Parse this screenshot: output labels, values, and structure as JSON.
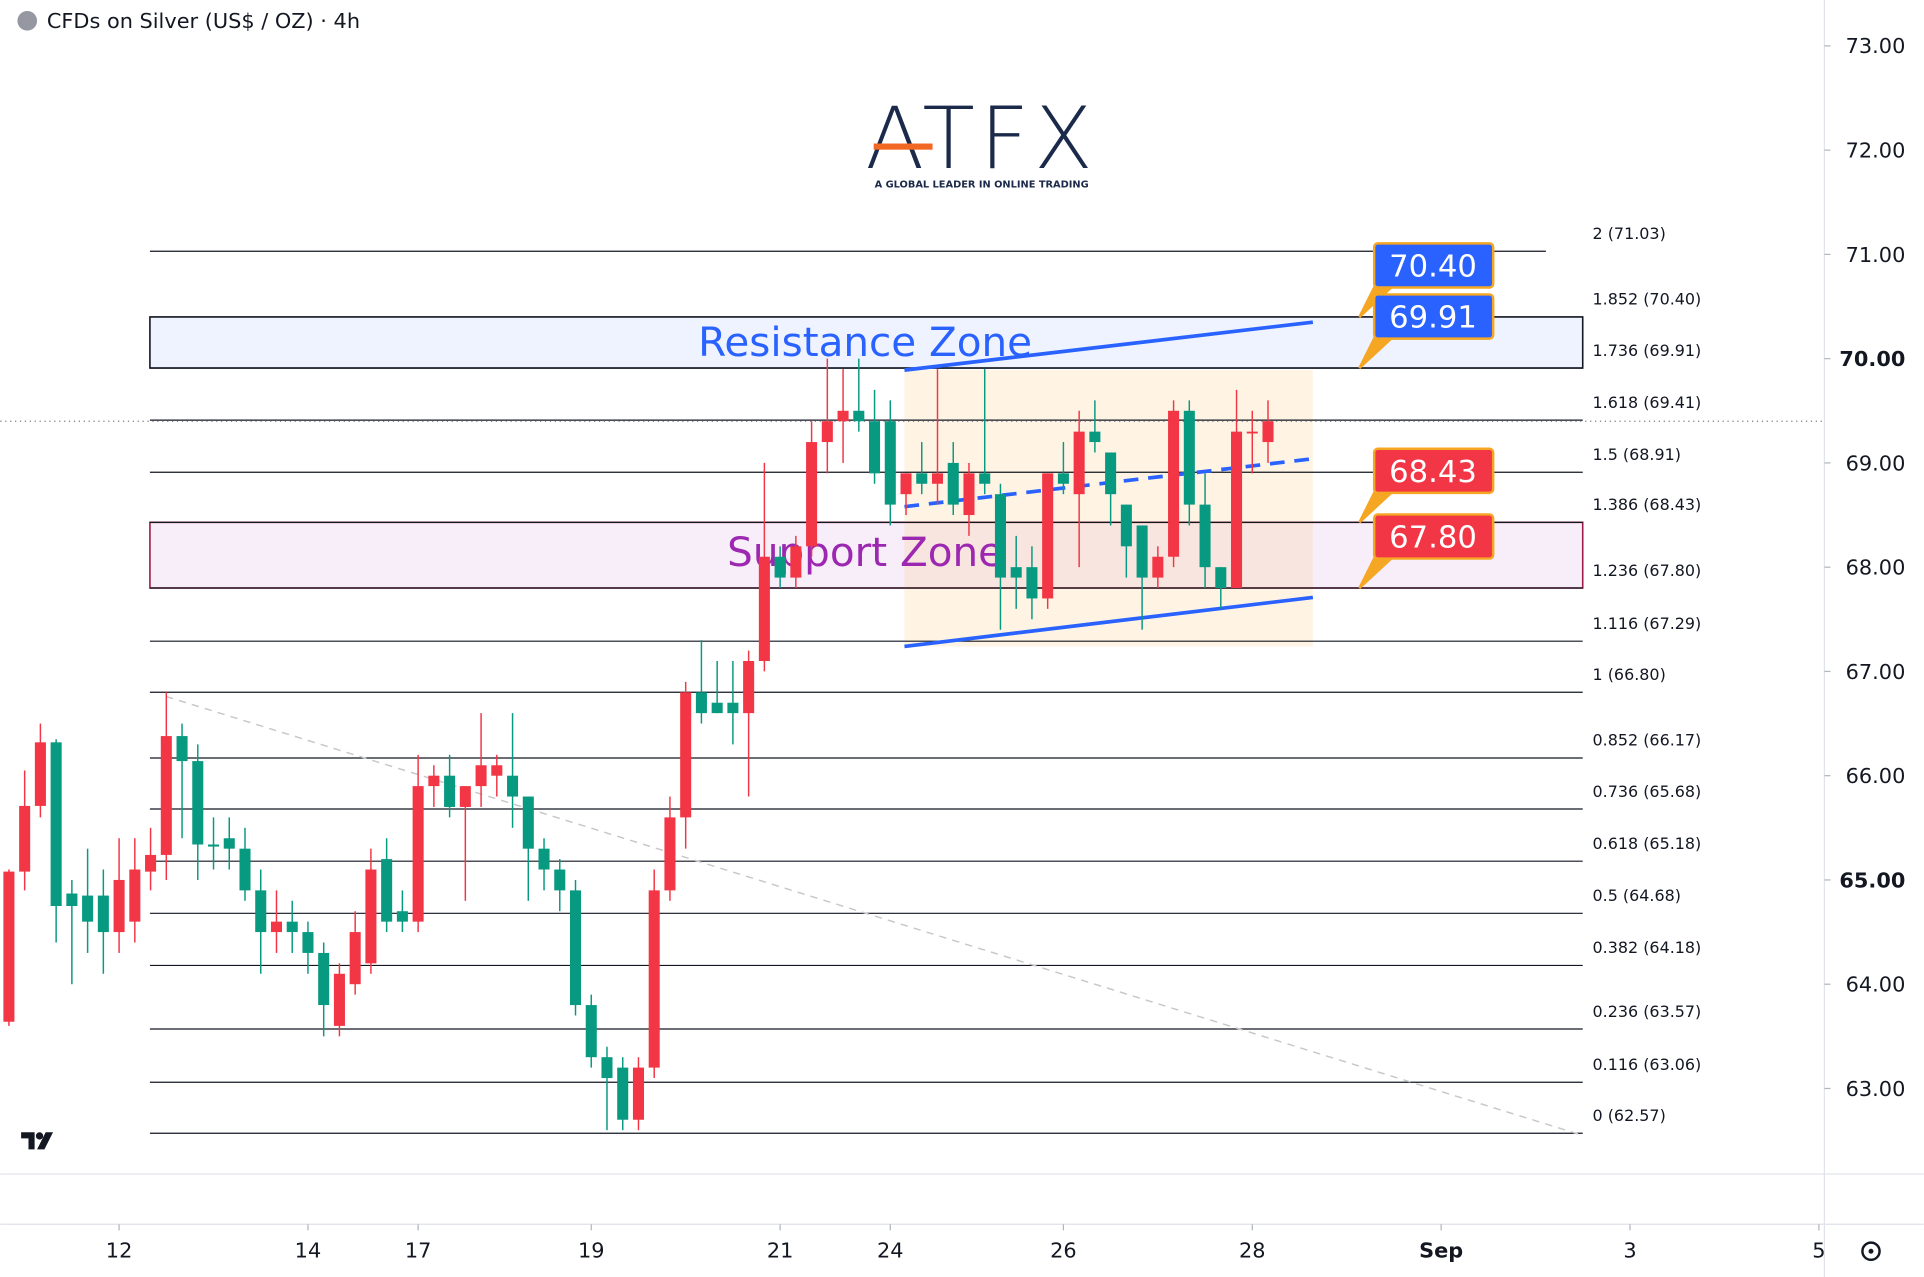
{
  "chart_data": {
    "type": "candlestick",
    "title": "CFDs on Silver (US$ / OZ) · 4h",
    "logo": {
      "name": "ATFX",
      "tagline": "A GLOBAL LEADER IN ONLINE TRADING"
    },
    "up_color": "#f23645",
    "down_color": "#089981",
    "x": [
      0,
      1,
      2,
      3,
      4,
      5,
      6,
      7,
      8,
      9,
      10,
      11,
      12,
      13,
      14,
      15,
      16,
      17,
      18,
      19,
      20,
      21,
      22,
      23,
      24,
      25,
      26,
      27,
      28,
      29,
      30,
      31,
      32,
      33,
      34,
      35,
      36,
      37,
      38,
      39,
      40,
      41,
      42,
      43,
      44,
      45,
      46,
      47,
      48,
      49,
      50,
      51,
      52,
      53,
      54,
      55,
      56,
      57,
      58,
      59,
      60,
      61,
      62,
      63,
      64,
      65,
      66,
      67,
      68,
      69,
      70,
      71,
      72,
      73,
      74,
      75,
      76,
      77,
      78,
      79,
      80
    ],
    "open": [
      63.64,
      65.08,
      65.71,
      66.32,
      64.87,
      64.85,
      64.85,
      64.5,
      64.6,
      65.08,
      65.24,
      66.38,
      66.14,
      65.34,
      65.4,
      65.3,
      64.9,
      64.5,
      64.6,
      64.5,
      64.3,
      63.6,
      64.0,
      64.2,
      65.2,
      64.7,
      64.6,
      65.9,
      66.0,
      65.7,
      65.9,
      66.0,
      66.0,
      65.8,
      65.3,
      65.1,
      64.9,
      63.8,
      63.3,
      63.2,
      62.7,
      63.2,
      64.9,
      65.6,
      66.8,
      66.7,
      66.7,
      66.6,
      67.1,
      68.1,
      67.9,
      68.2,
      69.2,
      69.4,
      69.5,
      69.4,
      69.4,
      68.7,
      68.9,
      68.8,
      69.0,
      68.5,
      68.9,
      68.7,
      68.0,
      68.0,
      67.7,
      68.9,
      68.7,
      69.3,
      69.1,
      68.6,
      68.4,
      67.9,
      68.1,
      69.5,
      68.6,
      68.0,
      67.8,
      69.3,
      69.2
    ],
    "high": [
      65.1,
      66.05,
      66.5,
      66.35,
      65.0,
      65.3,
      65.1,
      65.4,
      65.4,
      65.5,
      66.8,
      66.5,
      66.3,
      65.6,
      65.6,
      65.5,
      65.1,
      64.9,
      64.8,
      64.6,
      64.4,
      64.2,
      64.7,
      65.3,
      65.4,
      64.9,
      66.2,
      66.1,
      66.2,
      65.9,
      66.6,
      66.2,
      66.6,
      65.8,
      65.4,
      65.2,
      65.0,
      63.9,
      63.4,
      63.3,
      63.3,
      65.1,
      65.8,
      66.9,
      67.3,
      67.1,
      67.1,
      67.2,
      69.0,
      68.2,
      68.3,
      69.4,
      70.0,
      69.9,
      70.0,
      69.7,
      69.6,
      68.9,
      69.2,
      69.9,
      69.2,
      69.0,
      69.9,
      68.8,
      68.3,
      68.2,
      68.9,
      69.2,
      69.5,
      69.6,
      69.1,
      68.6,
      68.4,
      68.2,
      69.6,
      69.6,
      68.9,
      68.0,
      69.7,
      69.5,
      69.6
    ],
    "low": [
      63.6,
      64.9,
      65.6,
      64.4,
      64.0,
      64.3,
      64.1,
      64.3,
      64.4,
      64.9,
      65.0,
      65.4,
      65.0,
      65.1,
      65.1,
      64.8,
      64.1,
      64.3,
      64.3,
      64.1,
      63.5,
      63.5,
      63.9,
      64.1,
      64.5,
      64.5,
      64.5,
      65.7,
      65.6,
      64.8,
      65.7,
      65.8,
      65.5,
      64.8,
      64.9,
      64.7,
      63.7,
      63.2,
      62.6,
      62.6,
      62.6,
      63.1,
      64.8,
      65.3,
      66.5,
      66.6,
      66.3,
      65.8,
      67.0,
      67.8,
      67.8,
      68.1,
      68.9,
      69.0,
      69.3,
      68.8,
      68.4,
      68.5,
      68.7,
      68.6,
      68.5,
      68.3,
      68.7,
      67.4,
      67.6,
      67.5,
      67.6,
      68.7,
      68.0,
      69.1,
      68.4,
      67.9,
      67.4,
      67.8,
      68.0,
      68.4,
      67.8,
      67.6,
      67.8,
      68.9,
      69.0
    ],
    "close": [
      65.08,
      65.71,
      66.32,
      64.75,
      64.75,
      64.6,
      64.5,
      65.0,
      65.1,
      65.24,
      66.38,
      66.14,
      65.34,
      65.32,
      65.3,
      64.9,
      64.5,
      64.6,
      64.5,
      64.3,
      63.8,
      64.1,
      64.5,
      65.1,
      64.6,
      64.6,
      65.9,
      66.0,
      65.7,
      65.9,
      66.1,
      66.1,
      65.8,
      65.3,
      65.1,
      64.9,
      63.8,
      63.3,
      63.1,
      62.7,
      63.2,
      64.9,
      65.6,
      66.8,
      66.6,
      66.6,
      66.6,
      67.1,
      68.1,
      67.9,
      68.2,
      69.2,
      69.4,
      69.5,
      69.4,
      68.9,
      68.6,
      68.9,
      68.8,
      68.9,
      68.6,
      68.9,
      68.8,
      67.9,
      67.9,
      67.7,
      68.9,
      68.8,
      69.3,
      69.2,
      68.7,
      68.2,
      67.9,
      68.1,
      69.5,
      68.6,
      68.0,
      67.8,
      69.3,
      69.3,
      69.4
    ],
    "xlim": [
      -0.55,
      115.35
    ],
    "xticks": [
      {
        "value": 7,
        "label": "12"
      },
      {
        "value": 19,
        "label": "14"
      },
      {
        "value": 26,
        "label": "17"
      },
      {
        "value": 37,
        "label": "19"
      },
      {
        "value": 49,
        "label": "21"
      },
      {
        "value": 56,
        "label": "24"
      },
      {
        "value": 67,
        "label": "26"
      },
      {
        "value": 79,
        "label": "28"
      },
      {
        "value": 91,
        "label": "Sep"
      },
      {
        "value": 103,
        "label": "3"
      },
      {
        "value": 115,
        "label": "5"
      }
    ],
    "ylim": [
      62.18,
      73.44
    ],
    "yticks": [
      {
        "value": 73,
        "label": "73.00"
      },
      {
        "value": 72,
        "label": "72.00"
      },
      {
        "value": 71,
        "label": "71.00"
      },
      {
        "value": 70,
        "label": "70.00"
      },
      {
        "value": 69,
        "label": "69.00"
      },
      {
        "value": 68,
        "label": "68.00"
      },
      {
        "value": 67,
        "label": "67.00"
      },
      {
        "value": 66,
        "label": "66.00"
      },
      {
        "value": 65,
        "label": "65.00"
      },
      {
        "value": 64,
        "label": "64.00"
      },
      {
        "value": 63,
        "label": "63.00"
      }
    ],
    "bold_yticks": [
      70,
      65
    ],
    "fib_levels": [
      {
        "value": 71.03,
        "label": "2 (71.03)"
      },
      {
        "value": 70.4,
        "label": "1.852 (70.40)"
      },
      {
        "value": 69.91,
        "label": "1.736 (69.91)"
      },
      {
        "value": 69.41,
        "label": "1.618 (69.41)"
      },
      {
        "value": 68.91,
        "label": "1.5 (68.91)"
      },
      {
        "value": 68.43,
        "label": "1.386 (68.43)"
      },
      {
        "value": 67.8,
        "label": "1.236 (67.80)"
      },
      {
        "value": 67.29,
        "label": "1.116 (67.29)"
      },
      {
        "value": 66.8,
        "label": "1 (66.80)"
      },
      {
        "value": 66.17,
        "label": "0.852 (66.17)"
      },
      {
        "value": 65.68,
        "label": "0.736 (65.68)"
      },
      {
        "value": 65.18,
        "label": "0.618 (65.18)"
      },
      {
        "value": 64.68,
        "label": "0.5 (64.68)"
      },
      {
        "value": 64.18,
        "label": "0.382 (64.18)"
      },
      {
        "value": 63.57,
        "label": "0.236 (63.57)"
      },
      {
        "value": 63.06,
        "label": "0.116 (63.06)"
      },
      {
        "value": 62.57,
        "label": "0 (62.57)"
      }
    ],
    "zones": [
      {
        "label": "Resistance Zone",
        "low": 69.91,
        "high": 70.4,
        "color": "#2962ff"
      },
      {
        "label": "Support Zone",
        "low": 67.8,
        "high": 68.43,
        "color": "#9c27b0"
      }
    ],
    "price_tags": [
      {
        "value": 70.4,
        "label": "70.40",
        "color": "#2962ff"
      },
      {
        "value": 69.91,
        "label": "69.91",
        "color": "#2962ff"
      },
      {
        "value": 68.43,
        "label": "68.43",
        "color": "#f23645"
      },
      {
        "value": 67.8,
        "label": "67.80",
        "color": "#f23645"
      }
    ],
    "trendlines": [
      {
        "x": [
          56.9,
          82.85
        ],
        "y": [
          69.89,
          70.35
        ],
        "style": "solid",
        "color": "#2962ff"
      },
      {
        "x": [
          56.9,
          82.85
        ],
        "y": [
          68.58,
          69.04
        ],
        "style": "dashed",
        "color": "#2962ff"
      },
      {
        "x": [
          56.9,
          82.85
        ],
        "y": [
          67.24,
          67.71
        ],
        "style": "solid",
        "color": "#2962ff"
      },
      {
        "x": [
          9.98,
          100
        ],
        "y": [
          66.76,
          62.55
        ],
        "style": "dotted",
        "color": "#c8c8c8"
      }
    ]
  }
}
